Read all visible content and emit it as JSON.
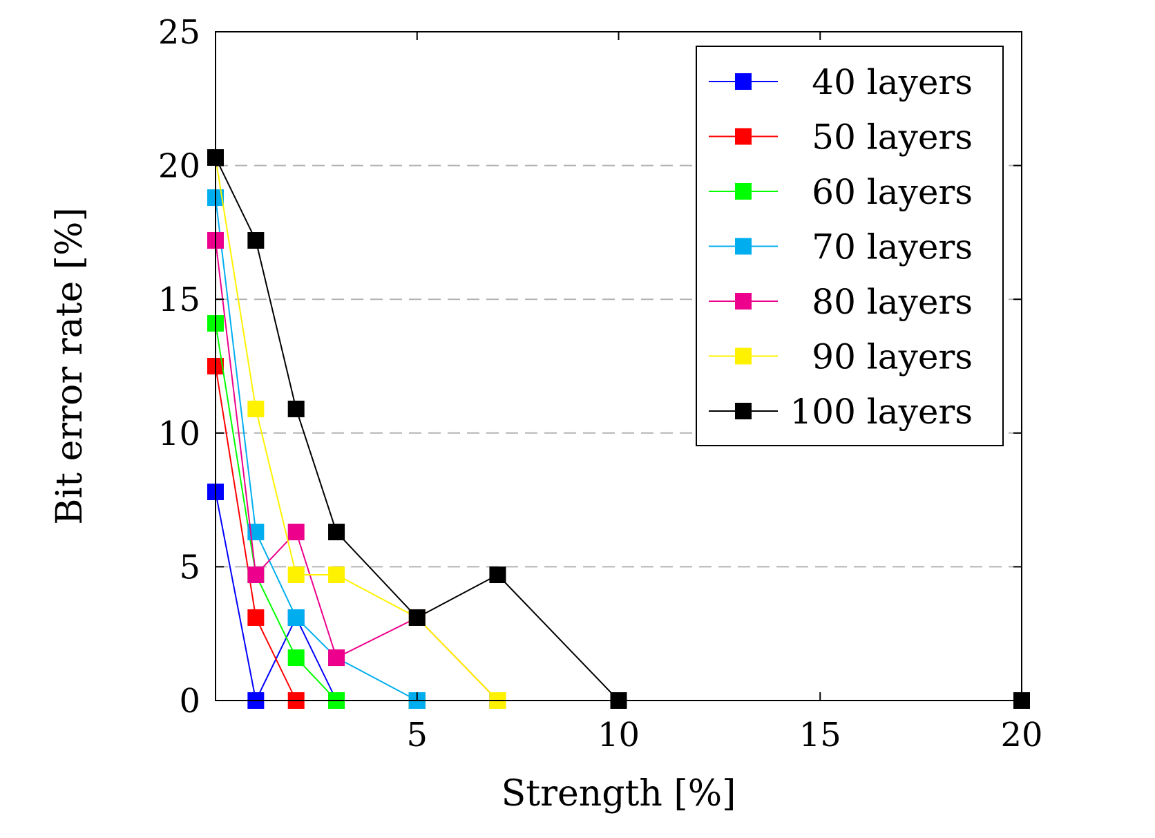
{
  "chart_data": {
    "type": "line",
    "title": "",
    "xlabel": "Strength [%]",
    "ylabel": "Bit error rate [%]",
    "xlim": [
      0,
      20
    ],
    "ylim": [
      0,
      25
    ],
    "xticks": [
      5,
      10,
      15,
      20
    ],
    "yticks": [
      0,
      5,
      10,
      15,
      20,
      25
    ],
    "grid": "horizontal dashed",
    "legend_position": "top-right",
    "series": [
      {
        "name": "40 layers",
        "color": "#0000ff",
        "x": [
          0,
          1,
          2,
          3,
          5,
          7,
          10,
          20
        ],
        "y": [
          7.8,
          0,
          3.1,
          0,
          0,
          0,
          0,
          0
        ]
      },
      {
        "name": "50 layers",
        "color": "#ff0000",
        "x": [
          0,
          1,
          2,
          3,
          5,
          7,
          10,
          20
        ],
        "y": [
          12.5,
          3.1,
          0,
          0,
          0,
          0,
          0,
          0
        ]
      },
      {
        "name": "60 layers",
        "color": "#00ff00",
        "x": [
          0,
          1,
          2,
          3,
          5,
          7,
          10,
          20
        ],
        "y": [
          14.1,
          4.7,
          1.6,
          0,
          0,
          0,
          0,
          0
        ]
      },
      {
        "name": "70 layers",
        "color": "#00aeef",
        "x": [
          0,
          1,
          2,
          3,
          5,
          7,
          10,
          20
        ],
        "y": [
          18.8,
          6.3,
          3.1,
          1.6,
          0,
          0,
          0,
          0
        ]
      },
      {
        "name": "80 layers",
        "color": "#ec008c",
        "x": [
          0,
          1,
          2,
          3,
          5,
          7,
          10,
          20
        ],
        "y": [
          17.2,
          4.7,
          6.3,
          1.6,
          3.1,
          0,
          0,
          0
        ]
      },
      {
        "name": "90 layers",
        "color": "#fff200",
        "x": [
          0,
          1,
          2,
          3,
          5,
          7,
          10,
          20
        ],
        "y": [
          20.3,
          10.9,
          4.7,
          4.7,
          3.1,
          0,
          0,
          0
        ]
      },
      {
        "name": "100 layers",
        "color": "#000000",
        "x": [
          0,
          1,
          2,
          3,
          5,
          7,
          10,
          20
        ],
        "y": [
          20.3,
          17.2,
          10.9,
          6.3,
          3.1,
          4.7,
          0,
          0
        ]
      }
    ]
  }
}
